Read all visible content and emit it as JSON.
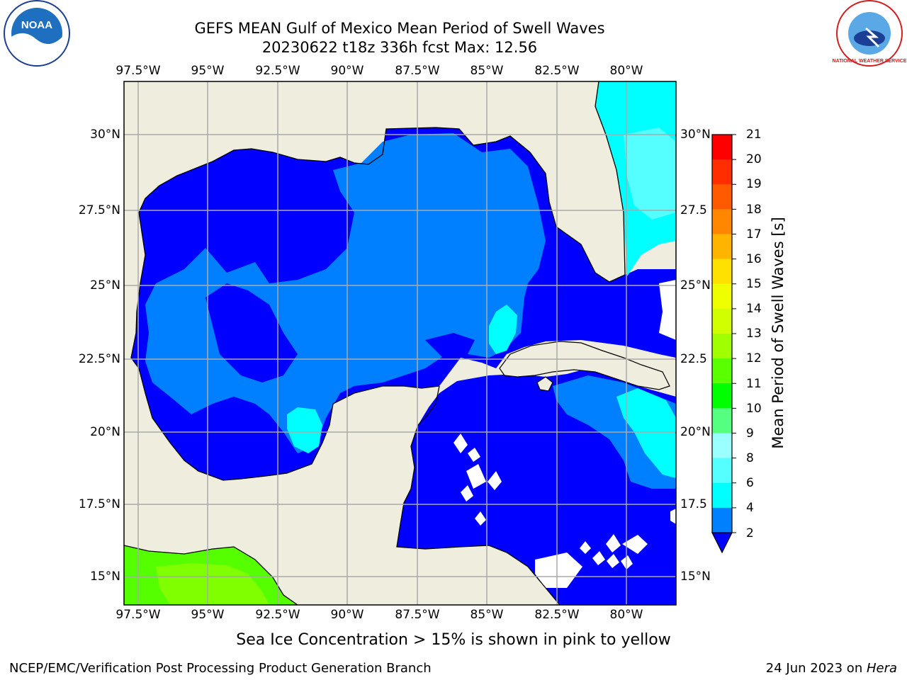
{
  "title": "GEFS MEAN Gulf of Mexico Mean Period of Swell Waves",
  "subtitle": "20230622 t18z 336h fcst   Max: 12.56",
  "lon_ticks": [
    "97.5°W",
    "95°W",
    "92.5°W",
    "90°W",
    "87.5°W",
    "85°W",
    "82.5°W",
    "80°W"
  ],
  "lat_ticks_left": [
    "30°N",
    "27.5°N",
    "25°N",
    "22.5°N",
    "20°N",
    "17.5°N",
    "15°N"
  ],
  "lat_ticks_right": [
    "30°N",
    "27.5",
    "25°N",
    "22.5",
    "20°N",
    "17.5",
    "15°N"
  ],
  "colorbar": {
    "label": "Mean Period of Swell Waves [s]",
    "ticks": [
      "21",
      "20",
      "19",
      "18",
      "17",
      "16",
      "15",
      "14",
      "13",
      "12",
      "11",
      "10",
      "9",
      "8",
      "6",
      "4",
      "2"
    ],
    "colors": [
      "#ff0000",
      "#ff2d00",
      "#ff5a00",
      "#ff8700",
      "#ffb400",
      "#ffe100",
      "#f0ff00",
      "#d2ff00",
      "#a0ff00",
      "#5aff00",
      "#00ff00",
      "#55ff80",
      "#9bffff",
      "#55ffff",
      "#00ffff",
      "#0080ff"
    ],
    "extend_color": "#0000ff"
  },
  "map_colors": {
    "land": "#efeddd",
    "water_2_4s": "#0000ff",
    "water_4_6s": "#0080ff",
    "water_6_8s": "#00ffff",
    "water_8_9s": "#55ffff",
    "water_10_11s": "#55ff00",
    "water_11_12s": "#7fff00",
    "grid": "#aaaaaa"
  },
  "note": "Sea Ice Concentration > 15% is shown in pink to yellow",
  "footer_left": "NCEP/EMC/Verification Post Processing Product Generation Branch",
  "footer_right_date": "24 Jun 2023 on ",
  "footer_right_host": "Hera",
  "logos": {
    "left_text": "NOAA",
    "right_text": "NATIONAL WEATHER SERVICE"
  }
}
